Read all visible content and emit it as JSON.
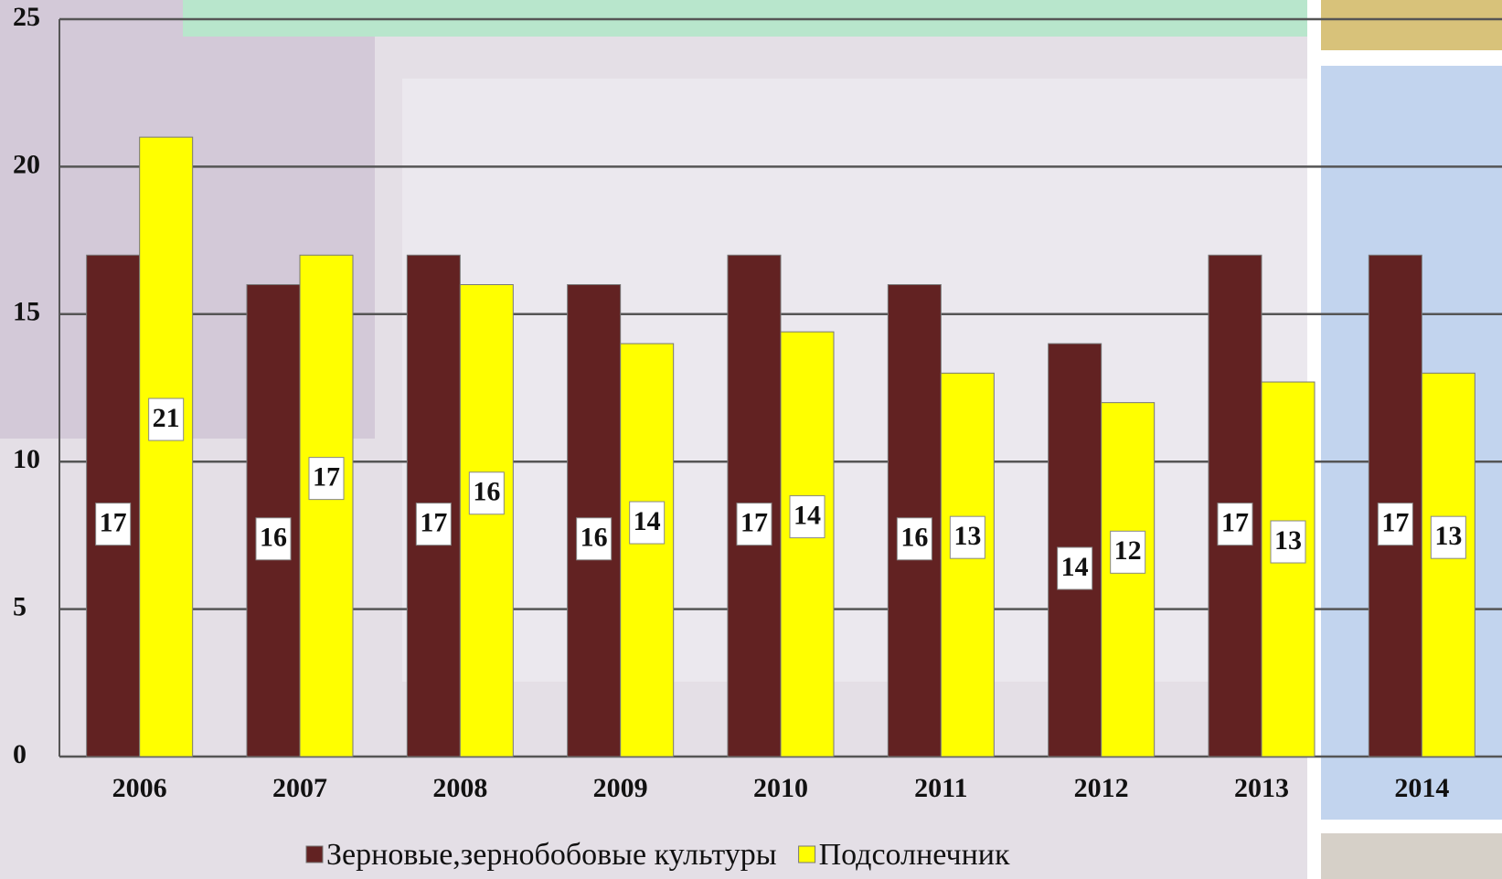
{
  "chart_data": {
    "type": "bar",
    "categories": [
      "2006",
      "2007",
      "2008",
      "2009",
      "2010",
      "2011",
      "2012",
      "2013",
      "2014"
    ],
    "series": [
      {
        "name": "Зерновые,зернобобовые культуры",
        "color": "#622222",
        "values": [
          17,
          16,
          17,
          16,
          17,
          16,
          14,
          17,
          17
        ]
      },
      {
        "name": "Подсолнечник",
        "color": "#ffff00",
        "values": [
          21,
          17,
          16,
          14,
          14.4,
          13,
          12,
          12.7,
          13
        ],
        "value_labels": [
          "21",
          "17",
          "16",
          "14",
          "14",
          "13",
          "12",
          "13",
          "13"
        ]
      }
    ],
    "ylim": [
      0,
      25
    ],
    "yticks": [
      0,
      5,
      10,
      15,
      20,
      25
    ],
    "grid": true,
    "legend": "bottom"
  }
}
